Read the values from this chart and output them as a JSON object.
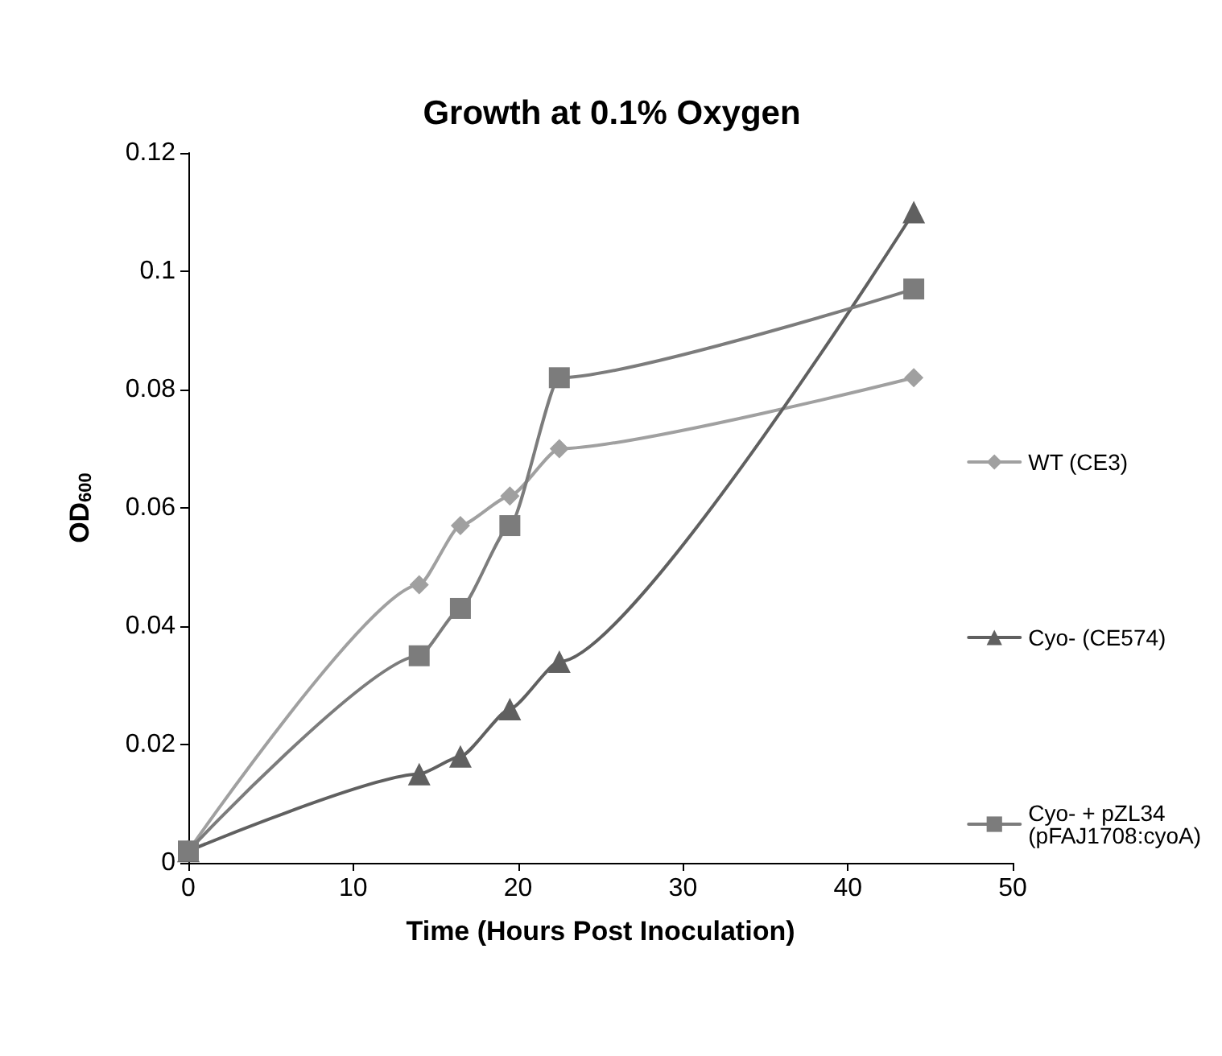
{
  "chart_data": {
    "type": "line",
    "title": "Growth at 0.1% Oxygen",
    "xlabel": "Time (Hours Post Inoculation)",
    "ylabel": "OD$_{600}$",
    "x": [
      0,
      14,
      16.5,
      19.5,
      22.5,
      44
    ],
    "series": [
      {
        "name": "WT (CE3)",
        "color": "#a0a0a0",
        "marker": "diamond",
        "values": [
          0.002,
          0.047,
          0.057,
          0.062,
          0.07,
          0.082
        ]
      },
      {
        "name": "Cyo- (CE574)",
        "color": "#606060",
        "marker": "triangle",
        "values": [
          0.002,
          0.015,
          0.018,
          0.026,
          0.034,
          0.11
        ]
      },
      {
        "name": "Cyo- + pZL34 (pFAJ1708:cyoA)",
        "color": "#7c7c7c",
        "marker": "square",
        "values": [
          0.002,
          0.035,
          0.043,
          0.057,
          0.082,
          0.097
        ]
      }
    ],
    "xlim": [
      0,
      50
    ],
    "xticks": [
      0,
      10,
      20,
      30,
      40,
      50
    ],
    "ylim": [
      0,
      0.12
    ],
    "yticks": [
      0,
      0.02,
      0.04,
      0.06,
      0.08,
      0.1,
      0.12
    ],
    "grid": false,
    "legend": "right",
    "line_style": "solid"
  }
}
